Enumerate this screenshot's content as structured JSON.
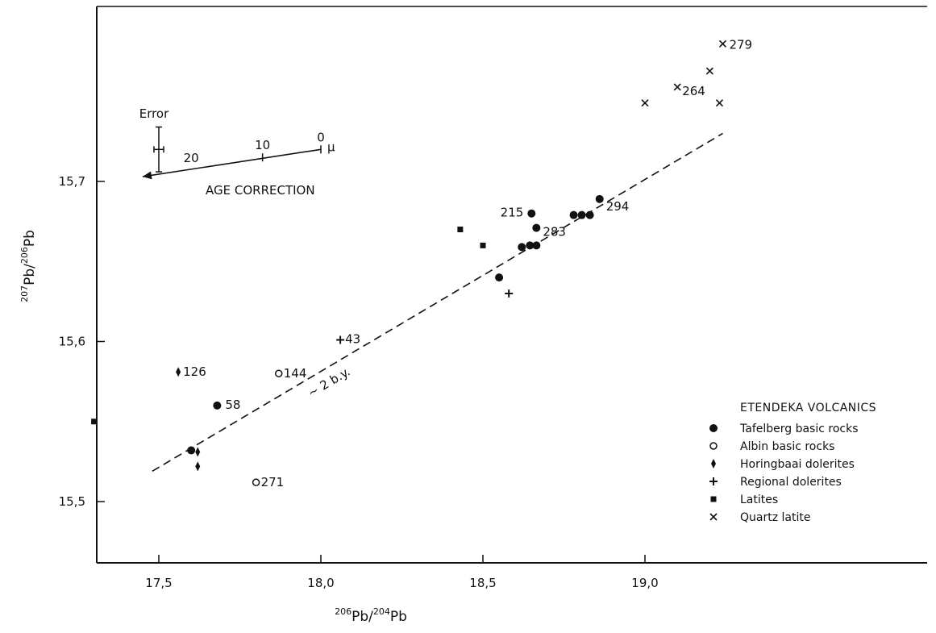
{
  "chart_data": {
    "type": "scatter",
    "xlim": [
      17.3,
      19.4
    ],
    "ylim": [
      15.46,
      15.8
    ],
    "x_ticks": [
      17.5,
      18.0,
      18.5,
      19.0
    ],
    "x_tick_labels": [
      "17,5",
      "18,0",
      "18,5",
      "19,0"
    ],
    "y_ticks": [
      15.5,
      15.6,
      15.7
    ],
    "y_tick_labels": [
      "15,5",
      "15,6",
      "15,7"
    ],
    "xlabel": {
      "sup1": "206",
      "base1": "Pb",
      "slash": "/",
      "sup2": "204",
      "base2": "Pb"
    },
    "ylabel": {
      "sup1": "207",
      "base1": "Pb",
      "slash": "/",
      "sup2": "206",
      "base2": "Pb"
    },
    "grid": false,
    "legend": {
      "title": "ETENDEKA VOLCANICS",
      "placement": "bottom-right"
    },
    "series": [
      {
        "name": "Tafelberg basic rocks",
        "marker": "filled-circle",
        "points": [
          {
            "x": 17.6,
            "y": 15.532,
            "label": ""
          },
          {
            "x": 17.68,
            "y": 15.56,
            "label": "58"
          },
          {
            "x": 18.55,
            "y": 15.64,
            "label": ""
          },
          {
            "x": 18.62,
            "y": 15.659,
            "label": ""
          },
          {
            "x": 18.645,
            "y": 15.66,
            "label": ""
          },
          {
            "x": 18.665,
            "y": 15.66,
            "label": ""
          },
          {
            "x": 18.665,
            "y": 15.671,
            "label": "283"
          },
          {
            "x": 18.65,
            "y": 15.68,
            "label": "215"
          },
          {
            "x": 18.78,
            "y": 15.679,
            "label": ""
          },
          {
            "x": 18.805,
            "y": 15.679,
            "label": ""
          },
          {
            "x": 18.83,
            "y": 15.679,
            "label": ""
          },
          {
            "x": 18.86,
            "y": 15.689,
            "label": "294"
          }
        ]
      },
      {
        "name": "Albin basic rocks",
        "marker": "open-circle",
        "points": [
          {
            "x": 17.87,
            "y": 15.58,
            "label": "144"
          },
          {
            "x": 17.8,
            "y": 15.512,
            "label": "271"
          }
        ]
      },
      {
        "name": "Horingbaai dolerites",
        "marker": "diamond",
        "points": [
          {
            "x": 17.56,
            "y": 15.581,
            "label": "126"
          },
          {
            "x": 17.62,
            "y": 15.531,
            "label": ""
          },
          {
            "x": 17.62,
            "y": 15.522,
            "label": ""
          }
        ]
      },
      {
        "name": "Regional dolerites",
        "marker": "plus",
        "points": [
          {
            "x": 18.06,
            "y": 15.601,
            "label": "43"
          },
          {
            "x": 18.58,
            "y": 15.63,
            "label": ""
          }
        ]
      },
      {
        "name": "Latites",
        "marker": "square",
        "points": [
          {
            "x": 18.43,
            "y": 15.67,
            "label": ""
          },
          {
            "x": 18.5,
            "y": 15.66,
            "label": ""
          },
          {
            "x": 17.3,
            "y": 15.55,
            "label": ""
          }
        ]
      },
      {
        "name": "Quartz latite",
        "marker": "cross",
        "points": [
          {
            "x": 19.24,
            "y": 15.786,
            "label": "279"
          },
          {
            "x": 19.2,
            "y": 15.769,
            "label": ""
          },
          {
            "x": 19.1,
            "y": 15.759,
            "label": "264"
          },
          {
            "x": 19.0,
            "y": 15.749,
            "label": ""
          },
          {
            "x": 19.23,
            "y": 15.749,
            "label": ""
          }
        ]
      }
    ],
    "reference_line": {
      "label": "~ 2 b.y.",
      "style": "dashed",
      "from": {
        "x": 17.48,
        "y": 15.519
      },
      "to": {
        "x": 19.24,
        "y": 15.73
      }
    },
    "annotations": {
      "error_label": "Error",
      "error_bar": {
        "x": 17.5,
        "y": 15.72,
        "x_err": 0.015,
        "y_err": 0.014
      },
      "age_correction": {
        "label": "AGE CORRECTION",
        "unit": "μ",
        "ticks": [
          {
            "value": "0",
            "x": 18.0,
            "y": 15.72
          },
          {
            "value": "10",
            "x": 17.82,
            "y": 15.715
          },
          {
            "value": "20",
            "x": 17.6,
            "y": 15.707
          }
        ],
        "arrow_end": {
          "x": 17.45,
          "y": 15.703
        }
      }
    }
  }
}
